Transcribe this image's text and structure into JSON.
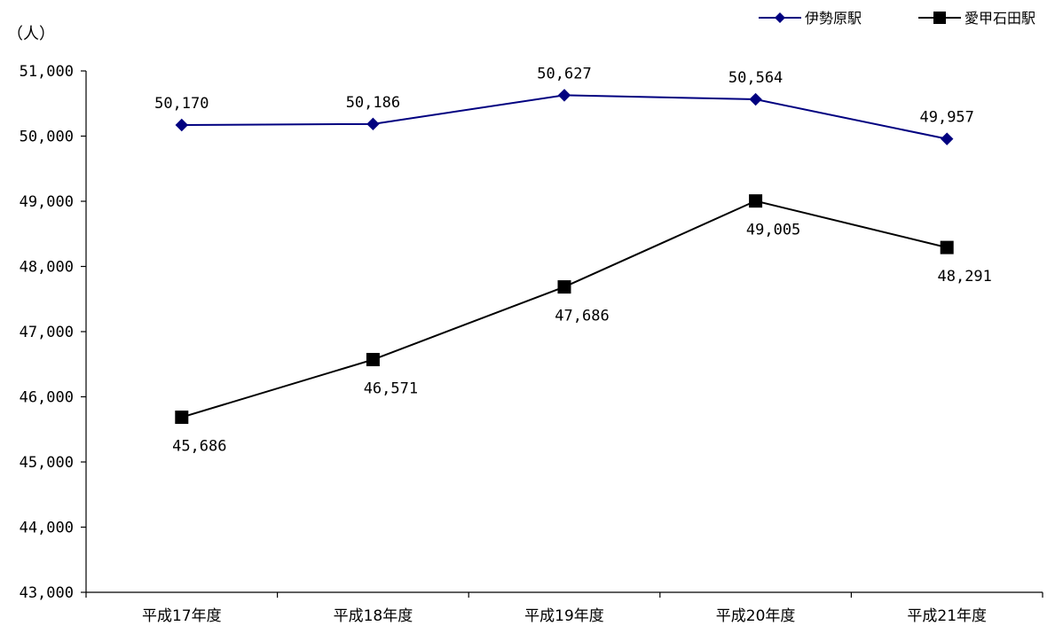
{
  "chart_data": {
    "type": "line",
    "title": "",
    "xlabel": "",
    "ylabel": "",
    "unit_label": "（人）",
    "categories": [
      "平成17年度",
      "平成18年度",
      "平成19年度",
      "平成20年度",
      "平成21年度"
    ],
    "ylim": [
      43000,
      51000
    ],
    "y_ticks": [
      43000,
      44000,
      45000,
      46000,
      47000,
      48000,
      49000,
      50000,
      51000
    ],
    "y_tick_labels": [
      "43,000",
      "44,000",
      "45,000",
      "46,000",
      "47,000",
      "48,000",
      "49,000",
      "50,000",
      "51,000"
    ],
    "grid": false,
    "legend_position": "top-right",
    "series": [
      {
        "name": "伊勢原駅",
        "values": [
          50170,
          50186,
          50627,
          50564,
          49957
        ],
        "value_labels": [
          "50,170",
          "50,186",
          "50,627",
          "50,564",
          "49,957"
        ],
        "color": "#000080",
        "marker": "diamond",
        "label_position": "above"
      },
      {
        "name": "愛甲石田駅",
        "values": [
          45686,
          46571,
          47686,
          49005,
          48291
        ],
        "value_labels": [
          "45,686",
          "46,571",
          "47,686",
          "49,005",
          "48,291"
        ],
        "color": "#000000",
        "marker": "square",
        "label_position": "below"
      }
    ]
  }
}
